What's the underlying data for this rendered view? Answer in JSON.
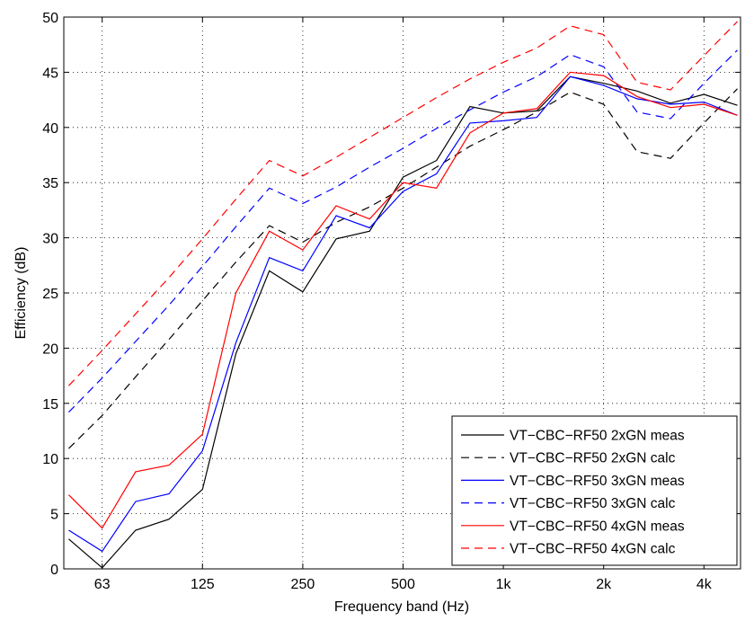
{
  "chart_data": {
    "type": "line",
    "xlabel": "Frequency band (Hz)",
    "ylabel": "Efficiency (dB)",
    "ylim": [
      0,
      50
    ],
    "y_ticks": [
      0,
      5,
      10,
      15,
      20,
      25,
      30,
      35,
      40,
      45,
      50
    ],
    "x_bands": [
      "50",
      "63",
      "80",
      "100",
      "125",
      "160",
      "200",
      "250",
      "315",
      "400",
      "500",
      "630",
      "800",
      "1000",
      "1250",
      "1600",
      "2000",
      "2500",
      "3150",
      "4000",
      "5000"
    ],
    "x_tick_labels": [
      {
        "band": "63",
        "label": "63"
      },
      {
        "band": "125",
        "label": "125"
      },
      {
        "band": "250",
        "label": "250"
      },
      {
        "band": "500",
        "label": "500"
      },
      {
        "band": "1000",
        "label": "1k"
      },
      {
        "band": "2000",
        "label": "2k"
      },
      {
        "band": "4000",
        "label": "4k"
      }
    ],
    "grid": true,
    "legend_position": "bottom-right",
    "series": [
      {
        "name": "VT−CBC−RF50 2xGN meas",
        "color": "#000000",
        "dash": "solid",
        "values": [
          2.7,
          0.1,
          3.5,
          4.5,
          7.2,
          19.5,
          27.0,
          25.1,
          29.9,
          30.6,
          35.5,
          37.0,
          41.9,
          41.3,
          41.5,
          44.6,
          44.0,
          43.3,
          42.2,
          43.0,
          42.0
        ]
      },
      {
        "name": "VT−CBC−RF50 2xGN calc",
        "color": "#000000",
        "dash": "dashed",
        "values": [
          10.9,
          13.9,
          17.4,
          20.8,
          24.3,
          27.8,
          31.1,
          29.6,
          31.4,
          32.8,
          34.5,
          36.4,
          38.3,
          39.8,
          41.4,
          43.2,
          42.1,
          37.8,
          37.2,
          40.4,
          43.5
        ]
      },
      {
        "name": "VT−CBC−RF50 3xGN meas",
        "color": "#0000ff",
        "dash": "solid",
        "values": [
          3.5,
          1.6,
          6.1,
          6.8,
          10.7,
          20.5,
          28.2,
          27.0,
          32.0,
          30.9,
          34.2,
          35.8,
          40.4,
          40.6,
          40.9,
          44.6,
          43.8,
          42.6,
          42.1,
          42.3,
          41.1
        ]
      },
      {
        "name": "VT−CBC−RF50 3xGN calc",
        "color": "#0000ff",
        "dash": "dashed",
        "values": [
          14.2,
          17.3,
          20.6,
          23.9,
          27.4,
          31.0,
          34.5,
          33.1,
          34.6,
          36.4,
          38.1,
          39.9,
          41.6,
          43.2,
          44.6,
          46.6,
          45.5,
          41.4,
          40.8,
          44.0,
          47.0
        ]
      },
      {
        "name": "VT−CBC−RF50 4xGN meas",
        "color": "#ff0000",
        "dash": "solid",
        "values": [
          6.7,
          3.7,
          8.8,
          9.4,
          12.2,
          25.0,
          30.6,
          28.9,
          32.9,
          31.7,
          35.0,
          34.5,
          39.5,
          41.3,
          41.7,
          45.0,
          44.7,
          42.8,
          41.8,
          42.1,
          41.1
        ]
      },
      {
        "name": "VT−CBC−RF50 4xGN calc",
        "color": "#ff0000",
        "dash": "dashed",
        "values": [
          16.6,
          19.8,
          23.1,
          26.4,
          29.9,
          33.5,
          37.0,
          35.6,
          37.3,
          39.1,
          40.9,
          42.7,
          44.4,
          45.9,
          47.2,
          49.2,
          48.4,
          44.1,
          43.4,
          46.5,
          49.6
        ]
      }
    ]
  }
}
